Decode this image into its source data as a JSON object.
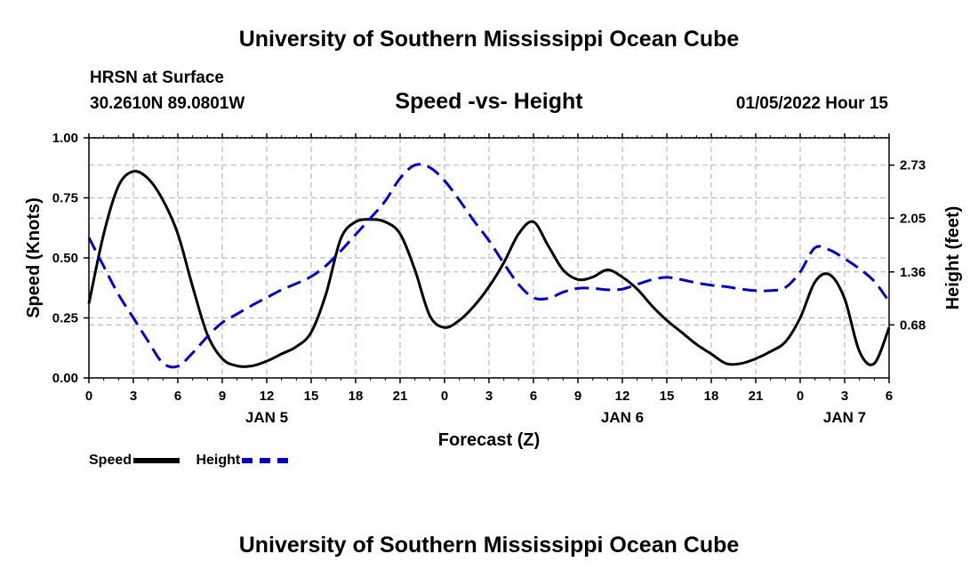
{
  "header": {
    "title": "University of Southern Mississippi Ocean Cube",
    "station": "HRSN at Surface",
    "coords": "30.2610N  89.0801W",
    "chart_title": "Speed -vs- Height",
    "valid_time": "01/05/2022 Hour 15"
  },
  "footer": {
    "title": "University of Southern Mississippi Ocean Cube"
  },
  "legend": {
    "speed": "Speed",
    "height": "Height"
  },
  "colors": {
    "speed": "#000000",
    "height": "#0000cc",
    "grid": "#bbbbbb"
  },
  "chart_data": {
    "type": "line",
    "title": "Speed -vs- Height",
    "xlabel": "Forecast (Z)",
    "ylabel": "Speed (Knots)",
    "y2label": "Height (feet)",
    "xlim": [
      0,
      54
    ],
    "ylim": [
      0,
      1
    ],
    "y2lim": [
      0,
      3.08
    ],
    "x_ticks": [
      0,
      3,
      6,
      9,
      12,
      15,
      18,
      21,
      24,
      27,
      30,
      33,
      36,
      39,
      42,
      45,
      48,
      51,
      54
    ],
    "x_tick_labels": [
      "0",
      "3",
      "6",
      "9",
      "12",
      "15",
      "18",
      "21",
      "0",
      "3",
      "6",
      "9",
      "12",
      "15",
      "18",
      "21",
      "0",
      "3",
      "6"
    ],
    "date_labels": [
      {
        "x": 12,
        "label": "JAN 5"
      },
      {
        "x": 36,
        "label": "JAN 6"
      },
      {
        "x": 51,
        "label": "JAN 7"
      }
    ],
    "y_ticks": [
      0,
      0.25,
      0.5,
      0.75,
      1.0
    ],
    "y_tick_labels": [
      "0.00",
      "0.25",
      "0.50",
      "0.75",
      "1.00"
    ],
    "y2_ticks": [
      0.68,
      1.36,
      2.05,
      2.73
    ],
    "y2_tick_labels": [
      "0.68",
      "1.36",
      "2.05",
      "2.73"
    ],
    "grid": true,
    "legend_position": "bottom-left",
    "series": [
      {
        "name": "Speed",
        "axis": "left",
        "style": "solid",
        "x": [
          0,
          1,
          2,
          3,
          4,
          5,
          6,
          7,
          8,
          9,
          10,
          11,
          12,
          13,
          14,
          15,
          16,
          17,
          18,
          19,
          20,
          21,
          22,
          23,
          24,
          25,
          26,
          27,
          28,
          29,
          30,
          31,
          32,
          33,
          34,
          35,
          36,
          37,
          38,
          39,
          40,
          41,
          42,
          43,
          44,
          45,
          46,
          47,
          48,
          49,
          50,
          51,
          52,
          53,
          54
        ],
        "values": [
          0.31,
          0.6,
          0.8,
          0.86,
          0.83,
          0.74,
          0.6,
          0.38,
          0.18,
          0.08,
          0.05,
          0.05,
          0.07,
          0.1,
          0.13,
          0.19,
          0.35,
          0.58,
          0.65,
          0.66,
          0.65,
          0.6,
          0.45,
          0.26,
          0.21,
          0.24,
          0.3,
          0.38,
          0.48,
          0.6,
          0.65,
          0.55,
          0.45,
          0.41,
          0.42,
          0.45,
          0.42,
          0.37,
          0.3,
          0.24,
          0.19,
          0.14,
          0.1,
          0.06,
          0.06,
          0.08,
          0.11,
          0.15,
          0.25,
          0.4,
          0.43,
          0.33,
          0.11,
          0.06,
          0.21
        ]
      },
      {
        "name": "Height",
        "axis": "right",
        "style": "dashed",
        "x": [
          0,
          1,
          2,
          3,
          4,
          5,
          6,
          7,
          8,
          9,
          10,
          11,
          12,
          13,
          14,
          15,
          16,
          17,
          18,
          19,
          20,
          21,
          22,
          23,
          24,
          25,
          26,
          27,
          28,
          29,
          30,
          31,
          32,
          33,
          34,
          35,
          36,
          37,
          38,
          39,
          40,
          41,
          42,
          43,
          44,
          45,
          46,
          47,
          48,
          49,
          50,
          51,
          52,
          53,
          54
        ],
        "values": [
          1.8,
          1.43,
          1.07,
          0.77,
          0.47,
          0.19,
          0.15,
          0.32,
          0.53,
          0.71,
          0.82,
          0.93,
          1.03,
          1.13,
          1.21,
          1.3,
          1.44,
          1.63,
          1.84,
          2.05,
          2.27,
          2.56,
          2.73,
          2.7,
          2.53,
          2.28,
          2.01,
          1.76,
          1.47,
          1.2,
          1.03,
          1.02,
          1.1,
          1.15,
          1.15,
          1.13,
          1.14,
          1.2,
          1.26,
          1.29,
          1.26,
          1.22,
          1.19,
          1.17,
          1.14,
          1.12,
          1.12,
          1.16,
          1.36,
          1.67,
          1.64,
          1.53,
          1.4,
          1.24,
          0.98
        ]
      }
    ]
  }
}
